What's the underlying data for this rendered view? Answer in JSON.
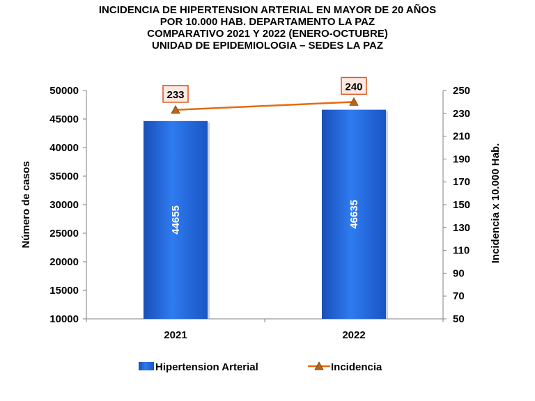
{
  "chart_data": {
    "type": "bar",
    "title_lines": [
      "INCIDENCIA DE HIPERTENSION ARTERIAL EN MAYOR DE 20 AÑOS",
      "POR 10.000 HAB. DEPARTAMENTO LA PAZ",
      "COMPARATIVO 2021 Y 2022 (ENERO-OCTUBRE)",
      "UNIDAD DE EPIDEMIOLOGIA – SEDES LA PAZ"
    ],
    "categories": [
      "2021",
      "2022"
    ],
    "ylabel": "Número de casos",
    "y2label": "Incidencia x 10.000 Hab.",
    "ylim": [
      10000,
      50000
    ],
    "y_ticks": [
      "10000",
      "15000",
      "20000",
      "25000",
      "30000",
      "35000",
      "40000",
      "45000",
      "50000"
    ],
    "y2lim": [
      50,
      250
    ],
    "y2_ticks": [
      "50",
      "70",
      "90",
      "110",
      "130",
      "150",
      "170",
      "190",
      "210",
      "230",
      "250"
    ],
    "series": [
      {
        "name": "Hipertension Arterial",
        "kind": "bar",
        "axis": "left",
        "values": [
          44655,
          46635
        ],
        "labels": [
          "44655",
          "46635"
        ],
        "color": "#1f66e0"
      },
      {
        "name": "Incidencia",
        "kind": "line",
        "axis": "right",
        "values": [
          233,
          240
        ],
        "labels": [
          "233",
          "240"
        ],
        "color": "#e36c0a"
      }
    ],
    "legend_position": "bottom",
    "grid": false
  }
}
